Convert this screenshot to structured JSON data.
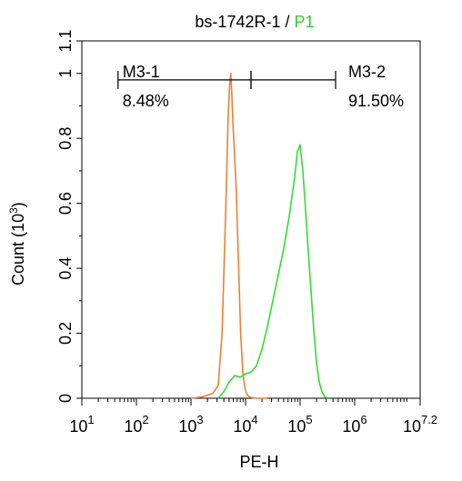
{
  "chart_data": {
    "type": "line",
    "title": "bs-1742R-1",
    "title_separator": "/",
    "title_gate": "P1",
    "xlabel": "PE-H",
    "ylabel": "Count",
    "ylabel_unit_base": "(10",
    "ylabel_unit_exp": "3",
    "ylabel_unit_close": ")",
    "x_scale": "log10",
    "xlim": [
      10,
      15848931.92
    ],
    "ylim": [
      0,
      1.1
    ],
    "x_ticks": [
      {
        "base": "10",
        "exp": "1",
        "value": 10
      },
      {
        "base": "10",
        "exp": "2",
        "value": 100
      },
      {
        "base": "10",
        "exp": "3",
        "value": 1000
      },
      {
        "base": "10",
        "exp": "4",
        "value": 10000
      },
      {
        "base": "10",
        "exp": "5",
        "value": 100000
      },
      {
        "base": "10",
        "exp": "6",
        "value": 1000000
      },
      {
        "base": "10",
        "exp": "7.2",
        "value": 15848931.92
      }
    ],
    "y_ticks": [
      "0",
      "0.2",
      "0.4",
      "0.6",
      "0.8",
      "1",
      "1.1"
    ],
    "y_tick_values": [
      0,
      0.2,
      0.4,
      0.6,
      0.8,
      1,
      1.1
    ],
    "series": [
      {
        "color": "#f08030",
        "x": [
          1000,
          1585,
          2512,
          3162,
          3715,
          4365,
          4786,
          5129,
          5370,
          5623,
          5888,
          6166,
          6761,
          7413,
          8128,
          8913,
          9772,
          10715,
          12023,
          15849,
          25119
        ],
        "y": [
          0.0,
          0.004,
          0.015,
          0.04,
          0.2,
          0.6,
          0.86,
          0.97,
          1.0,
          0.93,
          0.84,
          0.78,
          0.64,
          0.42,
          0.2,
          0.08,
          0.03,
          0.01,
          0.003,
          0.0,
          0.0
        ]
      },
      {
        "color": "#33dd33",
        "x": [
          3162,
          3981,
          5012,
          6310,
          7943,
          10000,
          12589,
          15849,
          19953,
          25119,
          31623,
          39811,
          50119,
          63096,
          79433,
          89125,
          100000,
          112202,
          125893,
          141254,
          158489,
          177828,
          199526,
          223872,
          251189,
          281838,
          316228
        ],
        "y": [
          0.0,
          0.02,
          0.05,
          0.07,
          0.065,
          0.075,
          0.08,
          0.1,
          0.15,
          0.22,
          0.3,
          0.38,
          0.46,
          0.56,
          0.68,
          0.76,
          0.78,
          0.7,
          0.58,
          0.45,
          0.33,
          0.21,
          0.11,
          0.05,
          0.02,
          0.005,
          0.0
        ]
      }
    ],
    "markers": [
      {
        "name": "M3-1",
        "percent": "8.48%",
        "x_start": 46,
        "x_end": 12589,
        "y": 0.98
      },
      {
        "name": "M3-2",
        "percent": "91.50%",
        "x_start": 12589,
        "x_end": 446684,
        "y": 0.98
      }
    ],
    "grid": false,
    "legend": "none"
  }
}
